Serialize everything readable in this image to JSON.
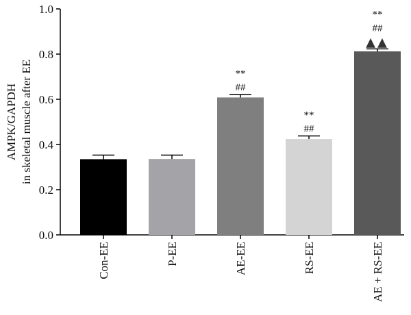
{
  "chart_data": {
    "type": "bar",
    "categories": [
      "Con-EE",
      "P-EE",
      "AE-EE",
      "RS-EE",
      "AE + RS-EE"
    ],
    "values": [
      0.335,
      0.336,
      0.608,
      0.424,
      0.812
    ],
    "errors": [
      0.018,
      0.017,
      0.013,
      0.014,
      0.011
    ],
    "bar_colors": [
      "#000000",
      "#a4a4a8",
      "#7f7f7f",
      "#d4d4d4",
      "#595959"
    ],
    "annotations": [
      [],
      [],
      [
        "**",
        "##"
      ],
      [
        "**",
        "##"
      ],
      [
        "**",
        "##",
        "▲▲"
      ]
    ],
    "ylabel_lines": [
      "AMPK/GAPDH",
      "in skeletal muscle after EE"
    ],
    "ylim": [
      0.0,
      1.0
    ],
    "yticks": [
      "0.0",
      "0.2",
      "0.4",
      "0.6",
      "0.8",
      "1.0"
    ],
    "grid": false
  }
}
